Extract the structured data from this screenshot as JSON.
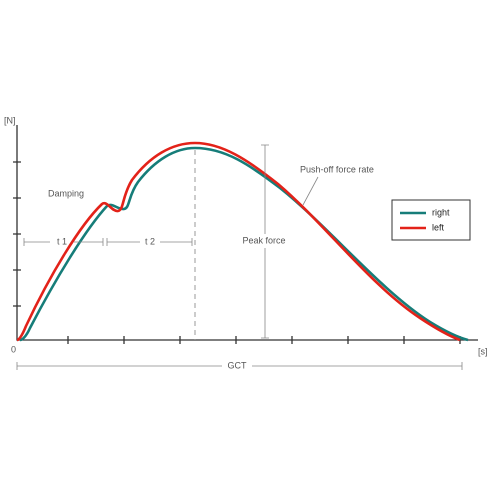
{
  "axes": {
    "y_unit": "[N]",
    "origin": "0",
    "x_unit": "[s]"
  },
  "annotations": {
    "damping": "Damping",
    "t1": "t 1",
    "t2": "t 2",
    "peak_force": "Peak force",
    "push_off": "Push-off force rate",
    "gct": "GCT"
  },
  "legend": {
    "items": [
      {
        "label": "right"
      },
      {
        "label": "left"
      }
    ]
  }
}
